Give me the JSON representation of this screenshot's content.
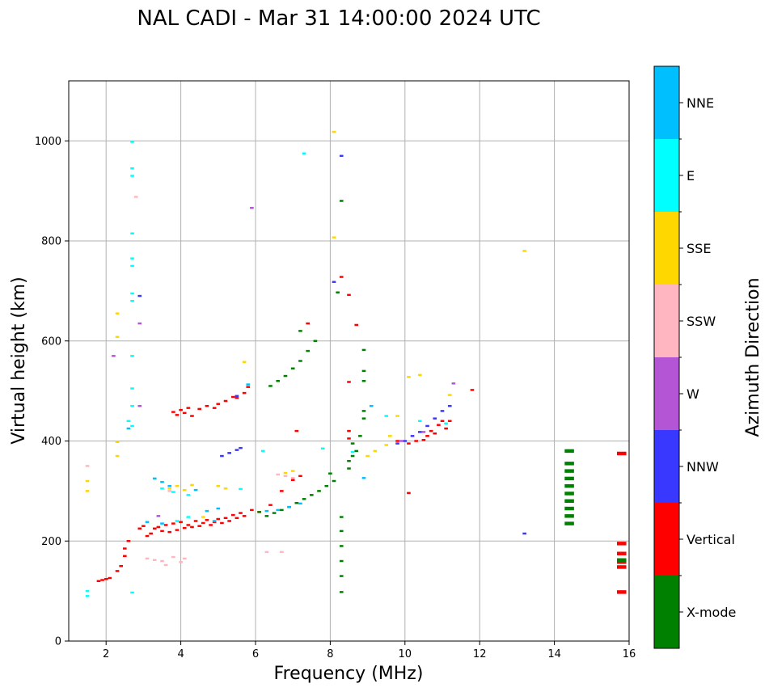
{
  "chart_data": {
    "type": "scatter",
    "title": "NAL CADI - Mar 31 14:00:00 2024 UTC",
    "xlabel": "Frequency (MHz)",
    "ylabel": "Virtual height (km)",
    "xlim": [
      1,
      16
    ],
    "ylim": [
      0,
      1120
    ],
    "xticks": [
      "2",
      "4",
      "6",
      "8",
      "10",
      "12",
      "14",
      "16"
    ],
    "yticks": [
      "0",
      "200",
      "400",
      "600",
      "800",
      "1000"
    ],
    "grid": true,
    "colorbar": {
      "label": "Azimuth Direction",
      "categories": [
        {
          "name": "X-mode",
          "color": "#008000"
        },
        {
          "name": "Vertical",
          "color": "#ff0000"
        },
        {
          "name": "NNW",
          "color": "#3838ff"
        },
        {
          "name": "W",
          "color": "#b455d6"
        },
        {
          "name": "SSW",
          "color": "#ffb6c1"
        },
        {
          "name": "SSE",
          "color": "#ffd700"
        },
        {
          "name": "E",
          "color": "#00ffff"
        },
        {
          "name": "NNE",
          "color": "#00bfff"
        }
      ]
    },
    "series": [
      {
        "name": "Vertical",
        "points": [
          [
            1.8,
            120
          ],
          [
            1.9,
            122
          ],
          [
            2.0,
            124
          ],
          [
            2.1,
            126
          ],
          [
            2.3,
            140
          ],
          [
            2.4,
            150
          ],
          [
            2.5,
            170
          ],
          [
            2.5,
            185
          ],
          [
            2.6,
            200
          ],
          [
            2.9,
            225
          ],
          [
            3.0,
            230
          ],
          [
            3.1,
            210
          ],
          [
            3.2,
            215
          ],
          [
            3.3,
            225
          ],
          [
            3.4,
            228
          ],
          [
            3.5,
            220
          ],
          [
            3.6,
            232
          ],
          [
            3.7,
            218
          ],
          [
            3.8,
            235
          ],
          [
            3.9,
            222
          ],
          [
            4.0,
            238
          ],
          [
            4.1,
            226
          ],
          [
            4.2,
            232
          ],
          [
            4.3,
            228
          ],
          [
            4.4,
            240
          ],
          [
            4.5,
            230
          ],
          [
            4.6,
            236
          ],
          [
            4.7,
            242
          ],
          [
            4.8,
            232
          ],
          [
            4.9,
            238
          ],
          [
            5.0,
            244
          ],
          [
            5.1,
            236
          ],
          [
            5.2,
            246
          ],
          [
            5.3,
            240
          ],
          [
            5.4,
            252
          ],
          [
            5.5,
            246
          ],
          [
            5.6,
            256
          ],
          [
            5.7,
            250
          ],
          [
            5.9,
            262
          ],
          [
            6.1,
            258
          ],
          [
            6.4,
            272
          ],
          [
            6.7,
            300
          ],
          [
            7.0,
            322
          ],
          [
            7.2,
            330
          ],
          [
            3.8,
            458
          ],
          [
            3.9,
            452
          ],
          [
            4.0,
            462
          ],
          [
            4.1,
            456
          ],
          [
            4.2,
            466
          ],
          [
            4.3,
            450
          ],
          [
            4.5,
            464
          ],
          [
            4.7,
            470
          ],
          [
            4.9,
            466
          ],
          [
            5.0,
            474
          ],
          [
            5.2,
            480
          ],
          [
            5.4,
            488
          ],
          [
            5.5,
            486
          ],
          [
            5.7,
            496
          ],
          [
            5.8,
            508
          ],
          [
            7.1,
            420
          ],
          [
            8.5,
            420
          ],
          [
            8.5,
            405
          ],
          [
            9.8,
            400
          ],
          [
            10.1,
            395
          ],
          [
            10.3,
            400
          ],
          [
            10.5,
            402
          ],
          [
            10.6,
            410
          ],
          [
            10.7,
            420
          ],
          [
            10.8,
            415
          ],
          [
            10.9,
            432
          ],
          [
            11.0,
            440
          ],
          [
            11.1,
            425
          ],
          [
            11.2,
            440
          ],
          [
            8.7,
            632
          ],
          [
            8.5,
            692
          ],
          [
            8.3,
            728
          ],
          [
            8.5,
            518
          ],
          [
            10.1,
            296
          ],
          [
            11.8,
            502
          ],
          [
            7.4,
            635
          ],
          [
            15.8,
            375
          ],
          [
            15.8,
            195
          ],
          [
            15.8,
            175
          ],
          [
            15.8,
            158
          ],
          [
            15.8,
            148
          ],
          [
            15.8,
            98
          ]
        ]
      },
      {
        "name": "X-mode",
        "points": [
          [
            6.1,
            258
          ],
          [
            6.3,
            250
          ],
          [
            6.5,
            256
          ],
          [
            6.7,
            262
          ],
          [
            6.9,
            268
          ],
          [
            7.1,
            276
          ],
          [
            7.3,
            284
          ],
          [
            7.5,
            292
          ],
          [
            7.7,
            300
          ],
          [
            7.9,
            310
          ],
          [
            8.1,
            320
          ],
          [
            8.0,
            335
          ],
          [
            6.4,
            510
          ],
          [
            6.6,
            520
          ],
          [
            6.8,
            530
          ],
          [
            7.0,
            545
          ],
          [
            7.2,
            560
          ],
          [
            7.4,
            580
          ],
          [
            7.6,
            600
          ],
          [
            7.2,
            620
          ],
          [
            8.5,
            345
          ],
          [
            8.5,
            360
          ],
          [
            8.6,
            370
          ],
          [
            8.7,
            380
          ],
          [
            8.6,
            395
          ],
          [
            8.8,
            410
          ],
          [
            8.9,
            445
          ],
          [
            8.9,
            460
          ],
          [
            8.9,
            520
          ],
          [
            8.9,
            540
          ],
          [
            8.9,
            582
          ],
          [
            8.3,
            880
          ],
          [
            8.2,
            697
          ],
          [
            8.3,
            248
          ],
          [
            8.3,
            220
          ],
          [
            8.3,
            190
          ],
          [
            8.3,
            160
          ],
          [
            8.3,
            130
          ],
          [
            8.3,
            98
          ],
          [
            14.4,
            235
          ],
          [
            14.4,
            250
          ],
          [
            14.4,
            265
          ],
          [
            14.4,
            280
          ],
          [
            14.4,
            295
          ],
          [
            14.4,
            310
          ],
          [
            14.4,
            325
          ],
          [
            14.4,
            340
          ],
          [
            14.4,
            355
          ],
          [
            14.4,
            380
          ],
          [
            15.8,
            162
          ]
        ]
      },
      {
        "name": "NNW",
        "points": [
          [
            5.1,
            370
          ],
          [
            5.3,
            376
          ],
          [
            5.5,
            382
          ],
          [
            5.6,
            386
          ],
          [
            9.8,
            395
          ],
          [
            10.0,
            400
          ],
          [
            10.2,
            410
          ],
          [
            10.4,
            418
          ],
          [
            10.6,
            430
          ],
          [
            10.8,
            445
          ],
          [
            11.0,
            460
          ],
          [
            11.2,
            470
          ],
          [
            8.3,
            970
          ],
          [
            8.1,
            718
          ],
          [
            13.2,
            215
          ],
          [
            2.9,
            690
          ],
          [
            5.5,
            490
          ]
        ]
      },
      {
        "name": "W",
        "points": [
          [
            2.2,
            570
          ],
          [
            5.9,
            866
          ],
          [
            2.9,
            635
          ],
          [
            9.9,
            400
          ],
          [
            10.5,
            418
          ],
          [
            11.3,
            515
          ],
          [
            3.4,
            250
          ],
          [
            2.9,
            470
          ]
        ]
      },
      {
        "name": "SSW",
        "points": [
          [
            3.1,
            165
          ],
          [
            3.3,
            162
          ],
          [
            3.5,
            160
          ],
          [
            3.6,
            152
          ],
          [
            3.8,
            168
          ],
          [
            4.0,
            158
          ],
          [
            4.1,
            165
          ],
          [
            6.3,
            178
          ],
          [
            6.7,
            178
          ],
          [
            6.6,
            333
          ],
          [
            6.8,
            330
          ],
          [
            7.0,
            326
          ],
          [
            2.8,
            888
          ],
          [
            1.5,
            350
          ],
          [
            3.7,
            300
          ]
        ]
      },
      {
        "name": "SSE",
        "points": [
          [
            1.5,
            300
          ],
          [
            1.5,
            320
          ],
          [
            2.3,
            398
          ],
          [
            2.3,
            370
          ],
          [
            2.3,
            655
          ],
          [
            2.3,
            608
          ],
          [
            3.7,
            305
          ],
          [
            3.9,
            310
          ],
          [
            4.1,
            302
          ],
          [
            4.3,
            312
          ],
          [
            5.0,
            310
          ],
          [
            5.2,
            305
          ],
          [
            6.8,
            336
          ],
          [
            7.0,
            340
          ],
          [
            9.0,
            370
          ],
          [
            9.2,
            380
          ],
          [
            9.5,
            392
          ],
          [
            9.6,
            410
          ],
          [
            9.8,
            450
          ],
          [
            10.1,
            528
          ],
          [
            10.4,
            532
          ],
          [
            11.2,
            492
          ],
          [
            13.2,
            780
          ],
          [
            8.1,
            1018
          ],
          [
            8.1,
            807
          ],
          [
            5.7,
            558
          ],
          [
            4.6,
            248
          ]
        ]
      },
      {
        "name": "E",
        "points": [
          [
            1.5,
            90
          ],
          [
            1.5,
            100
          ],
          [
            2.7,
            998
          ],
          [
            2.7,
            945
          ],
          [
            2.7,
            930
          ],
          [
            2.7,
            815
          ],
          [
            2.7,
            765
          ],
          [
            2.7,
            750
          ],
          [
            2.7,
            695
          ],
          [
            2.7,
            680
          ],
          [
            2.7,
            570
          ],
          [
            2.7,
            505
          ],
          [
            2.7,
            470
          ],
          [
            2.7,
            430
          ],
          [
            2.6,
            440
          ],
          [
            2.7,
            97
          ],
          [
            7.3,
            975
          ],
          [
            3.5,
            305
          ],
          [
            3.8,
            298
          ],
          [
            4.2,
            292
          ],
          [
            5.6,
            304
          ],
          [
            7.8,
            385
          ],
          [
            8.6,
            378
          ],
          [
            9.5,
            450
          ],
          [
            10.4,
            440
          ],
          [
            11.1,
            435
          ],
          [
            6.2,
            380
          ],
          [
            3.9,
            240
          ],
          [
            4.2,
            248
          ]
        ]
      },
      {
        "name": "NNE",
        "points": [
          [
            3.3,
            325
          ],
          [
            3.5,
            318
          ],
          [
            3.7,
            310
          ],
          [
            4.4,
            302
          ],
          [
            4.7,
            260
          ],
          [
            5.0,
            265
          ],
          [
            5.8,
            513
          ],
          [
            6.3,
            260
          ],
          [
            6.6,
            262
          ],
          [
            6.9,
            268
          ],
          [
            7.2,
            275
          ],
          [
            8.9,
            326
          ],
          [
            9.1,
            470
          ],
          [
            3.1,
            238
          ],
          [
            3.5,
            235
          ],
          [
            4.9,
            240
          ],
          [
            2.6,
            425
          ]
        ]
      }
    ]
  }
}
